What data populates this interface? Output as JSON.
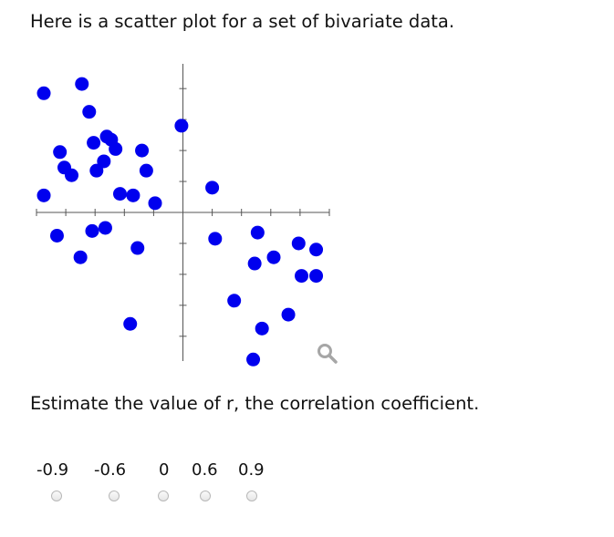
{
  "question": "Here is a scatter plot for a set of bivariate data.",
  "prompt": "Estimate the value of r, the correlation coefficient.",
  "options": [
    "-0.9",
    "-0.6",
    "0",
    "0.6",
    "0.9"
  ],
  "icons": {
    "zoom": "magnifier-icon"
  },
  "colors": {
    "point": "#0000ee",
    "axis": "#555555"
  },
  "chart_data": {
    "type": "scatter",
    "title": "",
    "xlabel": "",
    "ylabel": "",
    "xlim": [
      -5.0,
      5.0
    ],
    "ylim": [
      -4.8,
      4.8
    ],
    "ticks": {
      "x_step": 1,
      "y_step": 1
    },
    "grid": false,
    "x": [
      -4.75,
      -3.45,
      -3.2,
      -3.05,
      -2.6,
      -2.45,
      -2.3,
      -2.7,
      -2.95,
      -4.2,
      -4.05,
      -3.8,
      -4.75,
      -2.65,
      -2.15,
      -1.7,
      -1.4,
      -1.25,
      -0.95,
      -0.05,
      1.0,
      -4.3,
      -3.5,
      -3.1,
      -1.55,
      1.1,
      2.45,
      2.55,
      3.1,
      3.95,
      4.55,
      -1.8,
      1.75,
      2.4,
      2.7,
      3.6,
      4.05,
      4.55
    ],
    "y": [
      3.85,
      4.15,
      3.25,
      2.25,
      2.45,
      2.35,
      2.05,
      1.65,
      1.35,
      1.95,
      1.45,
      1.2,
      0.55,
      -0.5,
      0.6,
      0.55,
      2.0,
      1.35,
      0.3,
      2.8,
      0.8,
      -0.75,
      -1.45,
      -0.6,
      -1.15,
      -0.85,
      -1.65,
      -0.65,
      -1.45,
      -1.0,
      -1.2,
      -3.6,
      -2.85,
      -4.75,
      -3.75,
      -3.3,
      -2.05,
      -2.05
    ]
  }
}
